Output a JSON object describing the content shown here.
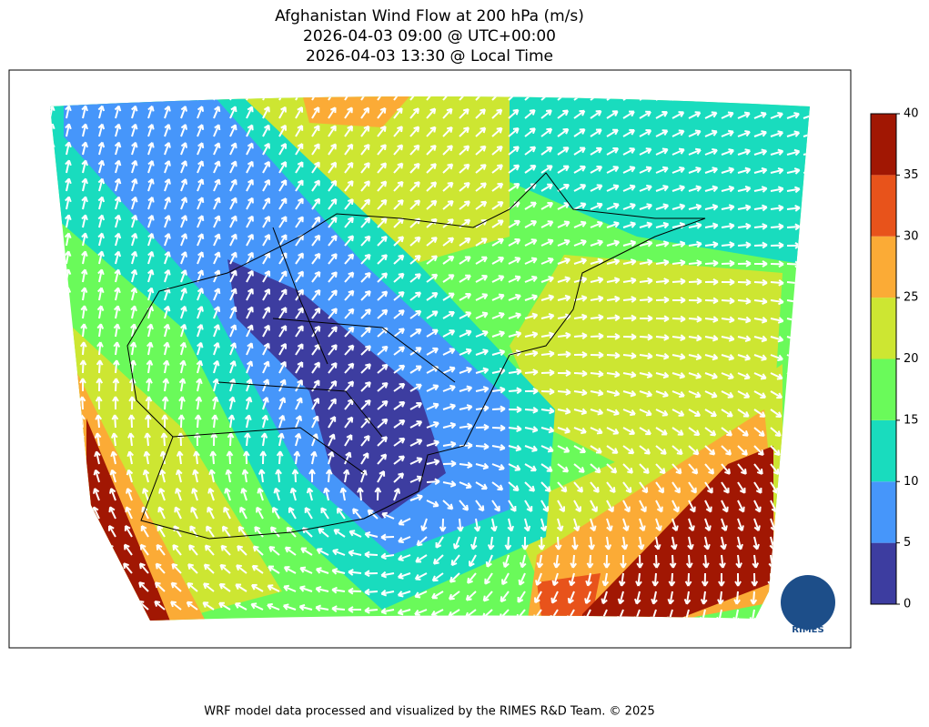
{
  "title": [
    "Afghanistan Wind Flow at 200 hPa (m/s)",
    "2026-04-03 09:00 @ UTC+00:00",
    "2026-04-03 13:30 @ Local Time"
  ],
  "colorbar": {
    "ticks": [
      0,
      5,
      10,
      15,
      20,
      25,
      30,
      35,
      40
    ],
    "colors": [
      "#3d3da0",
      "#4696fa",
      "#19dcbe",
      "#6afa5a",
      "#cde632",
      "#fbab36",
      "#e8531b",
      "#a11703"
    ]
  },
  "logo": "RIMES",
  "footer": "WRF model data processed and visualized by the RIMES R&D Team. © 2025"
}
